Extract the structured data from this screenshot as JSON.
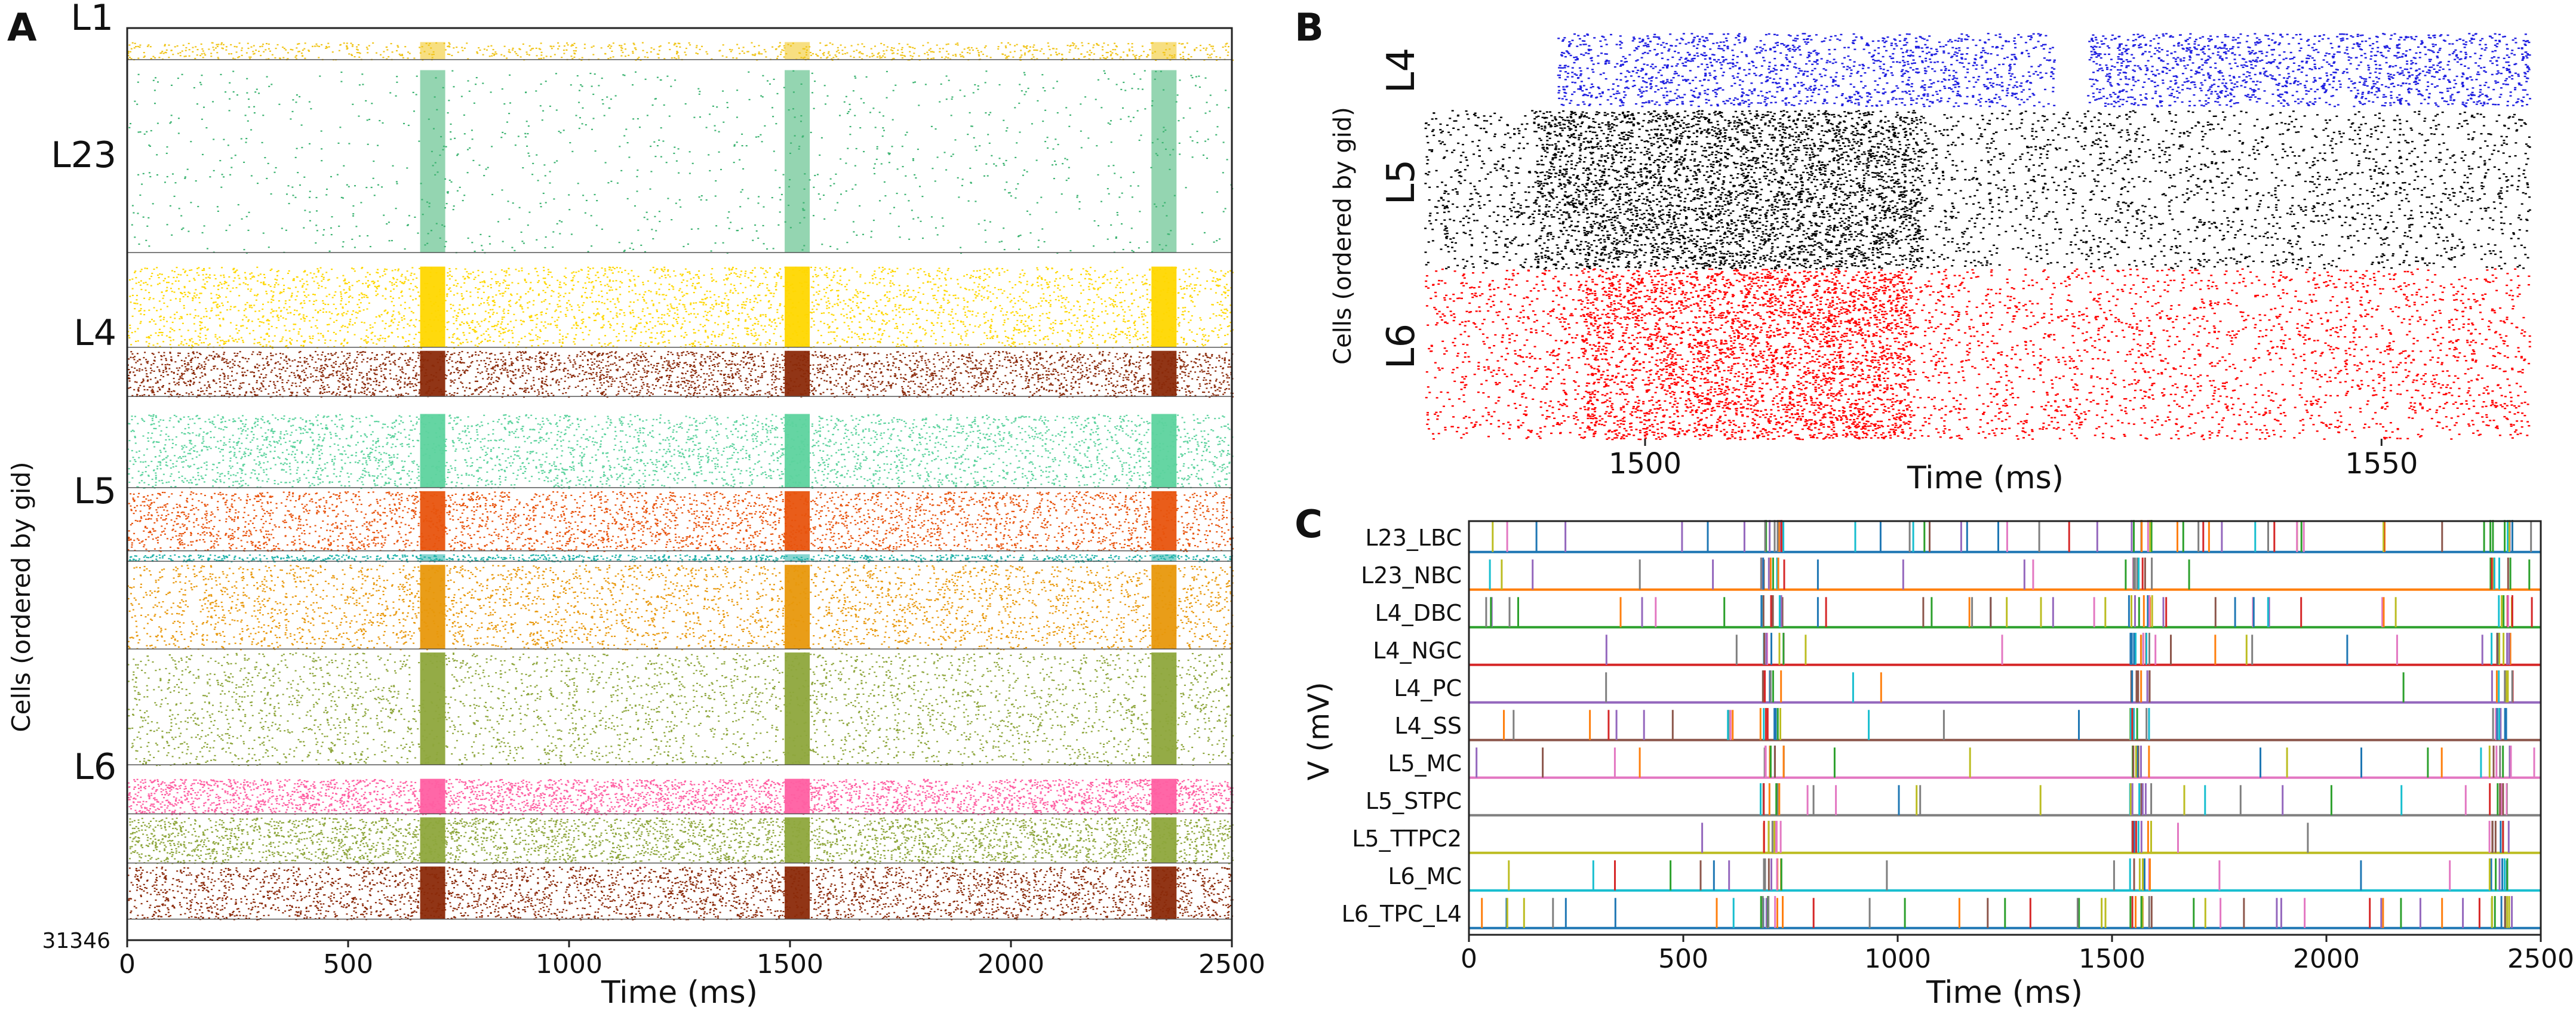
{
  "chart_data": [
    {
      "panel": "A",
      "type": "scatter",
      "subtype": "raster",
      "xlabel": "Time (ms)",
      "ylabel": "Cells (ordered by gid)",
      "xlim": [
        0,
        2500
      ],
      "xticks": [
        0,
        500,
        1000,
        1500,
        2000,
        2500
      ],
      "ylim": [
        0,
        31346
      ],
      "ytick_label": "31346",
      "layer_labels": [
        "L1",
        "L23",
        "L4",
        "L5",
        "L6"
      ],
      "burst_times_ms": [
        690,
        1515,
        2345
      ],
      "bands": [
        {
          "color": "#f0c419",
          "rows": [
            0.02,
            0.045
          ],
          "density": "thin"
        },
        {
          "color": "#3cb371",
          "rows": [
            0.06,
            0.32
          ],
          "density": "sparse"
        },
        {
          "color": "#ffd700",
          "rows": [
            0.34,
            0.455
          ],
          "density": "dense"
        },
        {
          "color": "#8b2a0a",
          "rows": [
            0.46,
            0.525
          ],
          "density": "dense"
        },
        {
          "color": "#5dd39e",
          "rows": [
            0.55,
            0.655
          ],
          "density": "dense"
        },
        {
          "color": "#e8540e",
          "rows": [
            0.66,
            0.745
          ],
          "density": "dense"
        },
        {
          "color": "#20b2aa",
          "rows": [
            0.75,
            0.76
          ],
          "density": "thin"
        },
        {
          "color": "#e8980c",
          "rows": [
            0.765,
            0.885
          ],
          "density": "dense"
        },
        {
          "color": "#8ea63c",
          "rows": [
            0.89,
            1.05
          ],
          "density": "dense"
        },
        {
          "color": "#ff5fa2",
          "rows": [
            1.07,
            1.12
          ],
          "density": "dense"
        },
        {
          "color": "#8ea63c",
          "rows": [
            1.125,
            1.19
          ],
          "density": "dense"
        },
        {
          "color": "#8b2a0a",
          "rows": [
            1.195,
            1.27
          ],
          "density": "dense"
        }
      ]
    },
    {
      "panel": "B",
      "type": "scatter",
      "subtype": "raster",
      "xlabel": "Time (ms)",
      "ylabel": "Cells (ordered by gid)",
      "xlim": [
        1485,
        1560
      ],
      "xticks": [
        1500,
        1550
      ],
      "series": [
        {
          "name": "L4",
          "color": "#1f1fe0"
        },
        {
          "name": "L5",
          "color": "#000000"
        },
        {
          "name": "L6",
          "color": "#ff0000"
        }
      ]
    },
    {
      "panel": "C",
      "type": "line",
      "xlabel": "Time (ms)",
      "ylabel": "V (mV)",
      "xlim": [
        0,
        2500
      ],
      "xticks": [
        0,
        500,
        1000,
        1500,
        2000,
        2500
      ],
      "burst_times_ms": [
        690,
        1550,
        2390
      ],
      "traces": [
        "L23_LBC",
        "L23_NBC",
        "L4_DBC",
        "L4_NGC",
        "L4_PC",
        "L4_SS",
        "L5_MC",
        "L5_STPC",
        "L5_TTPC2",
        "L6_MC",
        "L6_TPC_L4"
      ],
      "trace_colors": [
        "#1f77b4",
        "#ff7f0e",
        "#2ca02c",
        "#d62728",
        "#9467bd",
        "#8c564b",
        "#e377c2",
        "#7f7f7f",
        "#bcbd22",
        "#17becf"
      ]
    }
  ],
  "panel_letters": {
    "a": "A",
    "b": "B",
    "c": "C"
  }
}
